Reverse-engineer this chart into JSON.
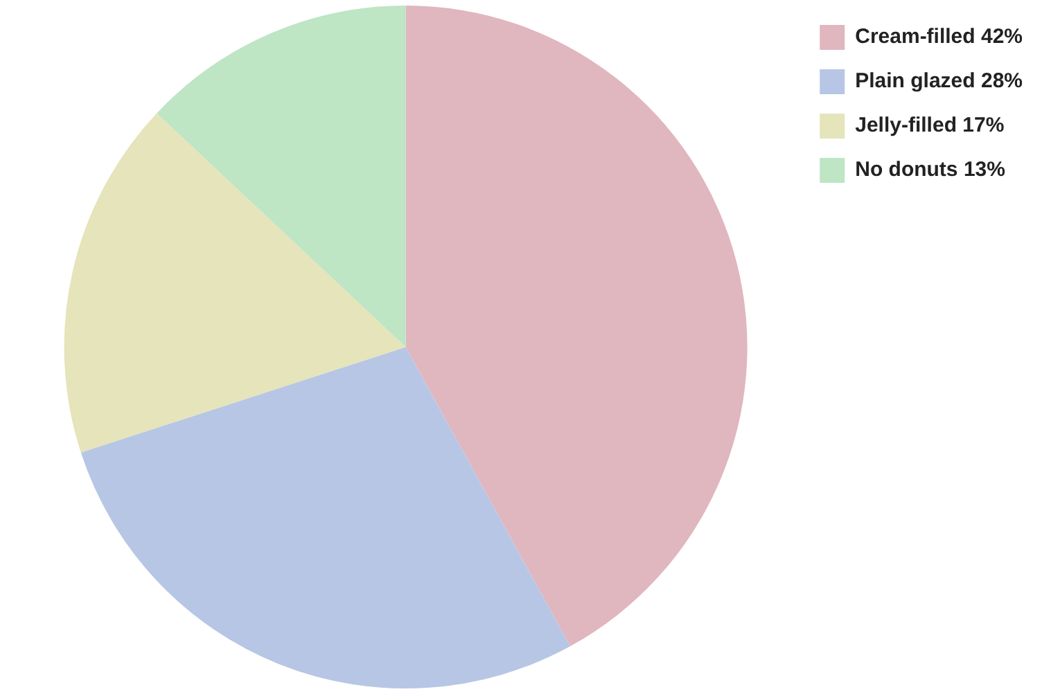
{
  "chart_data": {
    "type": "pie",
    "categories": [
      "Cream-filled 42%",
      "Plain glazed 28%",
      "Jelly-filled 17%",
      "No donuts 13%"
    ],
    "values": [
      42,
      28,
      17,
      13
    ],
    "colors": [
      "#e0b6bf",
      "#b8c6e5",
      "#e5e4ba",
      "#bee5c4"
    ],
    "legend": "top right"
  }
}
